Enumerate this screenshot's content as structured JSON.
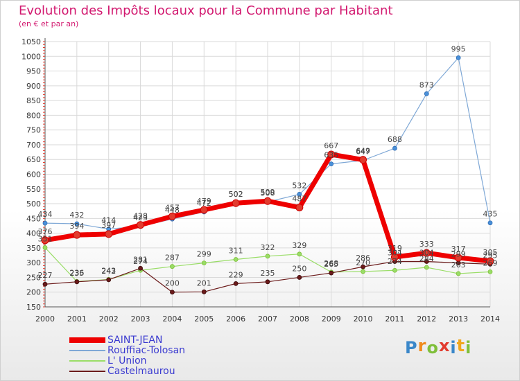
{
  "header": {
    "title": "Evolution des Impôts locaux pour la Commune par Habitant",
    "subtitle": "(en € et par an)"
  },
  "brand": {
    "letters": [
      "P",
      "r",
      "o",
      "x",
      "i",
      "t",
      "i"
    ],
    "colors": [
      "#3a87c9",
      "#f08a1c",
      "#7fbf3a",
      "#e23b2e",
      "#3a87c9",
      "#f0a71c",
      "#7fbf3a"
    ]
  },
  "chart_data": {
    "type": "line",
    "x": [
      2000,
      2001,
      2002,
      2003,
      2004,
      2005,
      2006,
      2007,
      2008,
      2009,
      2010,
      2011,
      2012,
      2013,
      2014
    ],
    "ylim": [
      150,
      1050
    ],
    "yticks": [
      150,
      200,
      250,
      300,
      350,
      400,
      450,
      500,
      550,
      600,
      650,
      700,
      750,
      800,
      850,
      900,
      950,
      1000,
      1050
    ],
    "grid": true,
    "legend": "bottom-left",
    "series": [
      {
        "name": "SAINT-JEAN",
        "color": "#ee0000",
        "values": [
          376,
          394,
          397,
          428,
          457,
          479,
          502,
          509,
          487,
          667,
          649,
          319,
          333,
          317,
          305
        ]
      },
      {
        "name": "Rouffiac-Tolosan",
        "color": "#7fa8d6",
        "values": [
          434,
          432,
          414,
          423,
          448,
          472,
          502,
          506,
          532,
          635,
          647,
          688,
          873,
          995,
          435
        ]
      },
      {
        "name": "L' Union",
        "color": "#99dd66",
        "values": [
          351,
          236,
          243,
          274,
          287,
          299,
          311,
          322,
          329,
          268,
          270,
          274,
          284,
          263,
          269
        ]
      },
      {
        "name": "Castelmaurou",
        "color": "#6b1a1a",
        "values": [
          227,
          235,
          242,
          281,
          200,
          201,
          229,
          235,
          250,
          265,
          286,
          304,
          304,
          299,
          295
        ]
      }
    ]
  }
}
